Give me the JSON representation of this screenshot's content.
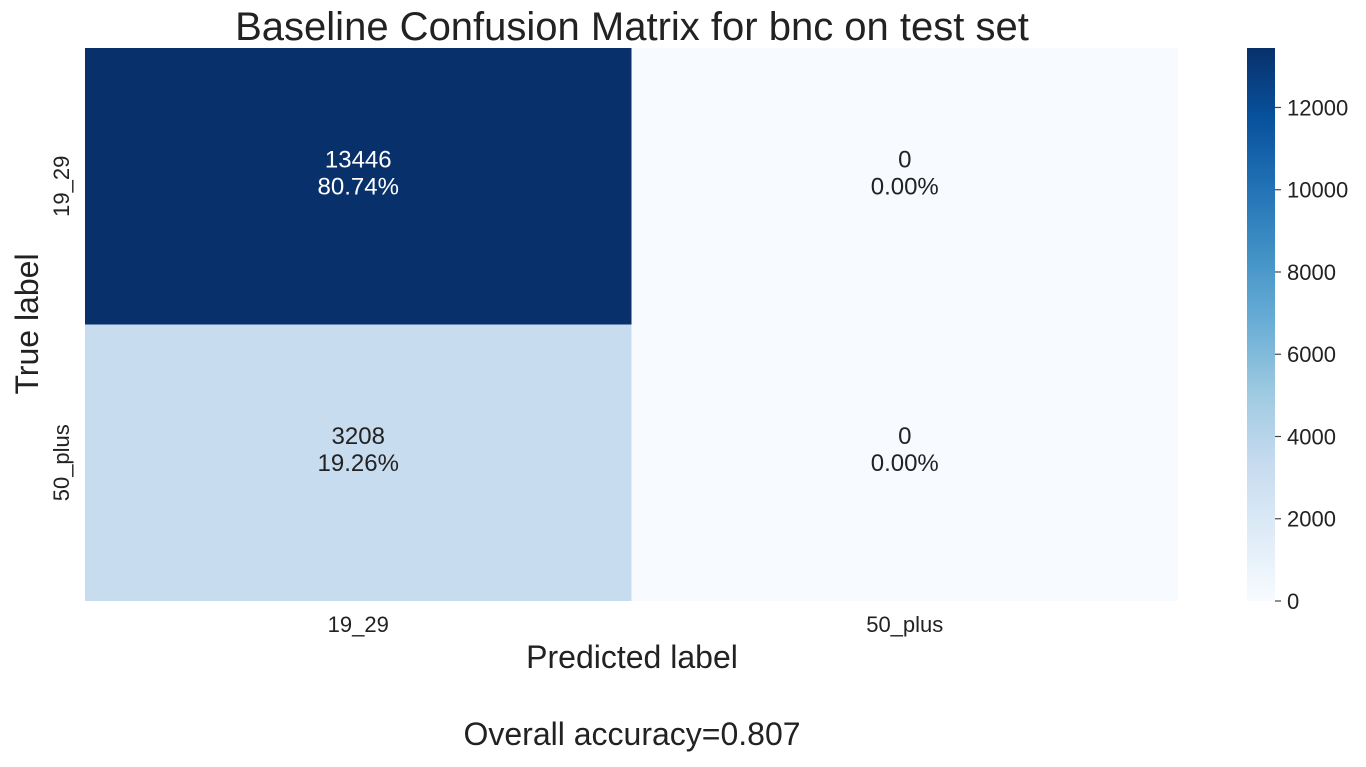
{
  "chart_data": {
    "type": "heatmap",
    "title": "Baseline Confusion Matrix for bnc on test set",
    "xlabel": "Predicted label",
    "ylabel": "True label",
    "row_labels": [
      "19_29",
      "50_plus"
    ],
    "col_labels": [
      "19_29",
      "50_plus"
    ],
    "values": [
      [
        13446,
        0
      ],
      [
        3208,
        0
      ]
    ],
    "cell_text": [
      [
        [
          "13446",
          "80.74%"
        ],
        [
          "0",
          "0.00%"
        ]
      ],
      [
        [
          "3208",
          "19.26%"
        ],
        [
          "0",
          "0.00%"
        ]
      ]
    ],
    "colormap": "Blues",
    "color_range": [
      0,
      13446
    ],
    "colorbar_ticks": [
      0,
      2000,
      4000,
      6000,
      8000,
      10000,
      12000
    ],
    "colors": {
      "high": "#08306b",
      "mid": "#c6dbef",
      "low": "#f7fbff"
    }
  },
  "footer": {
    "accuracy_text": "Overall accuracy=0.807"
  }
}
